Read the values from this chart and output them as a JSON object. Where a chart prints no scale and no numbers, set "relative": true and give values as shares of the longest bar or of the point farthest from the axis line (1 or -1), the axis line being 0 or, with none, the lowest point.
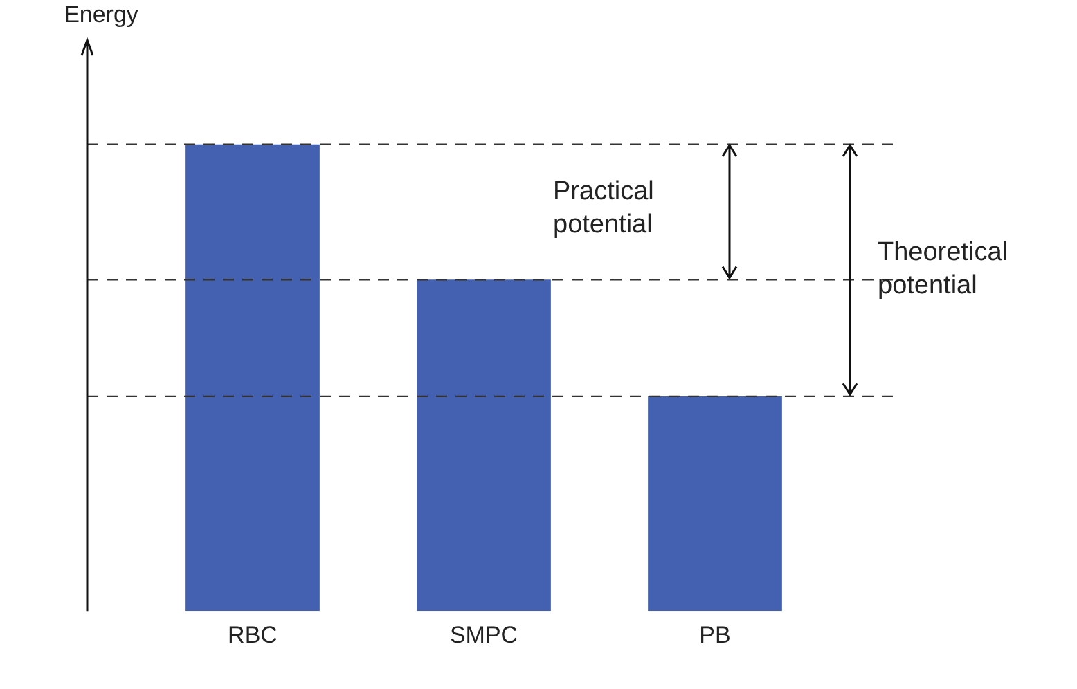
{
  "chart_data": {
    "type": "bar",
    "relative": true,
    "ylabel": "Energy",
    "categories": [
      "RBC",
      "SMPC",
      "PB"
    ],
    "values": [
      1,
      0.71,
      0.46
    ],
    "color": "#4361b0",
    "ref_lines": [
      {
        "axis": "y",
        "value": 1,
        "line_style": "dashed"
      },
      {
        "axis": "y",
        "value": 0.71,
        "line_style": "dashed"
      },
      {
        "axis": "y",
        "value": 0.46,
        "line_style": "dashed"
      }
    ],
    "annotations": [
      "Practical potential",
      "Theoretical potential"
    ],
    "grid": false,
    "legend": false
  }
}
